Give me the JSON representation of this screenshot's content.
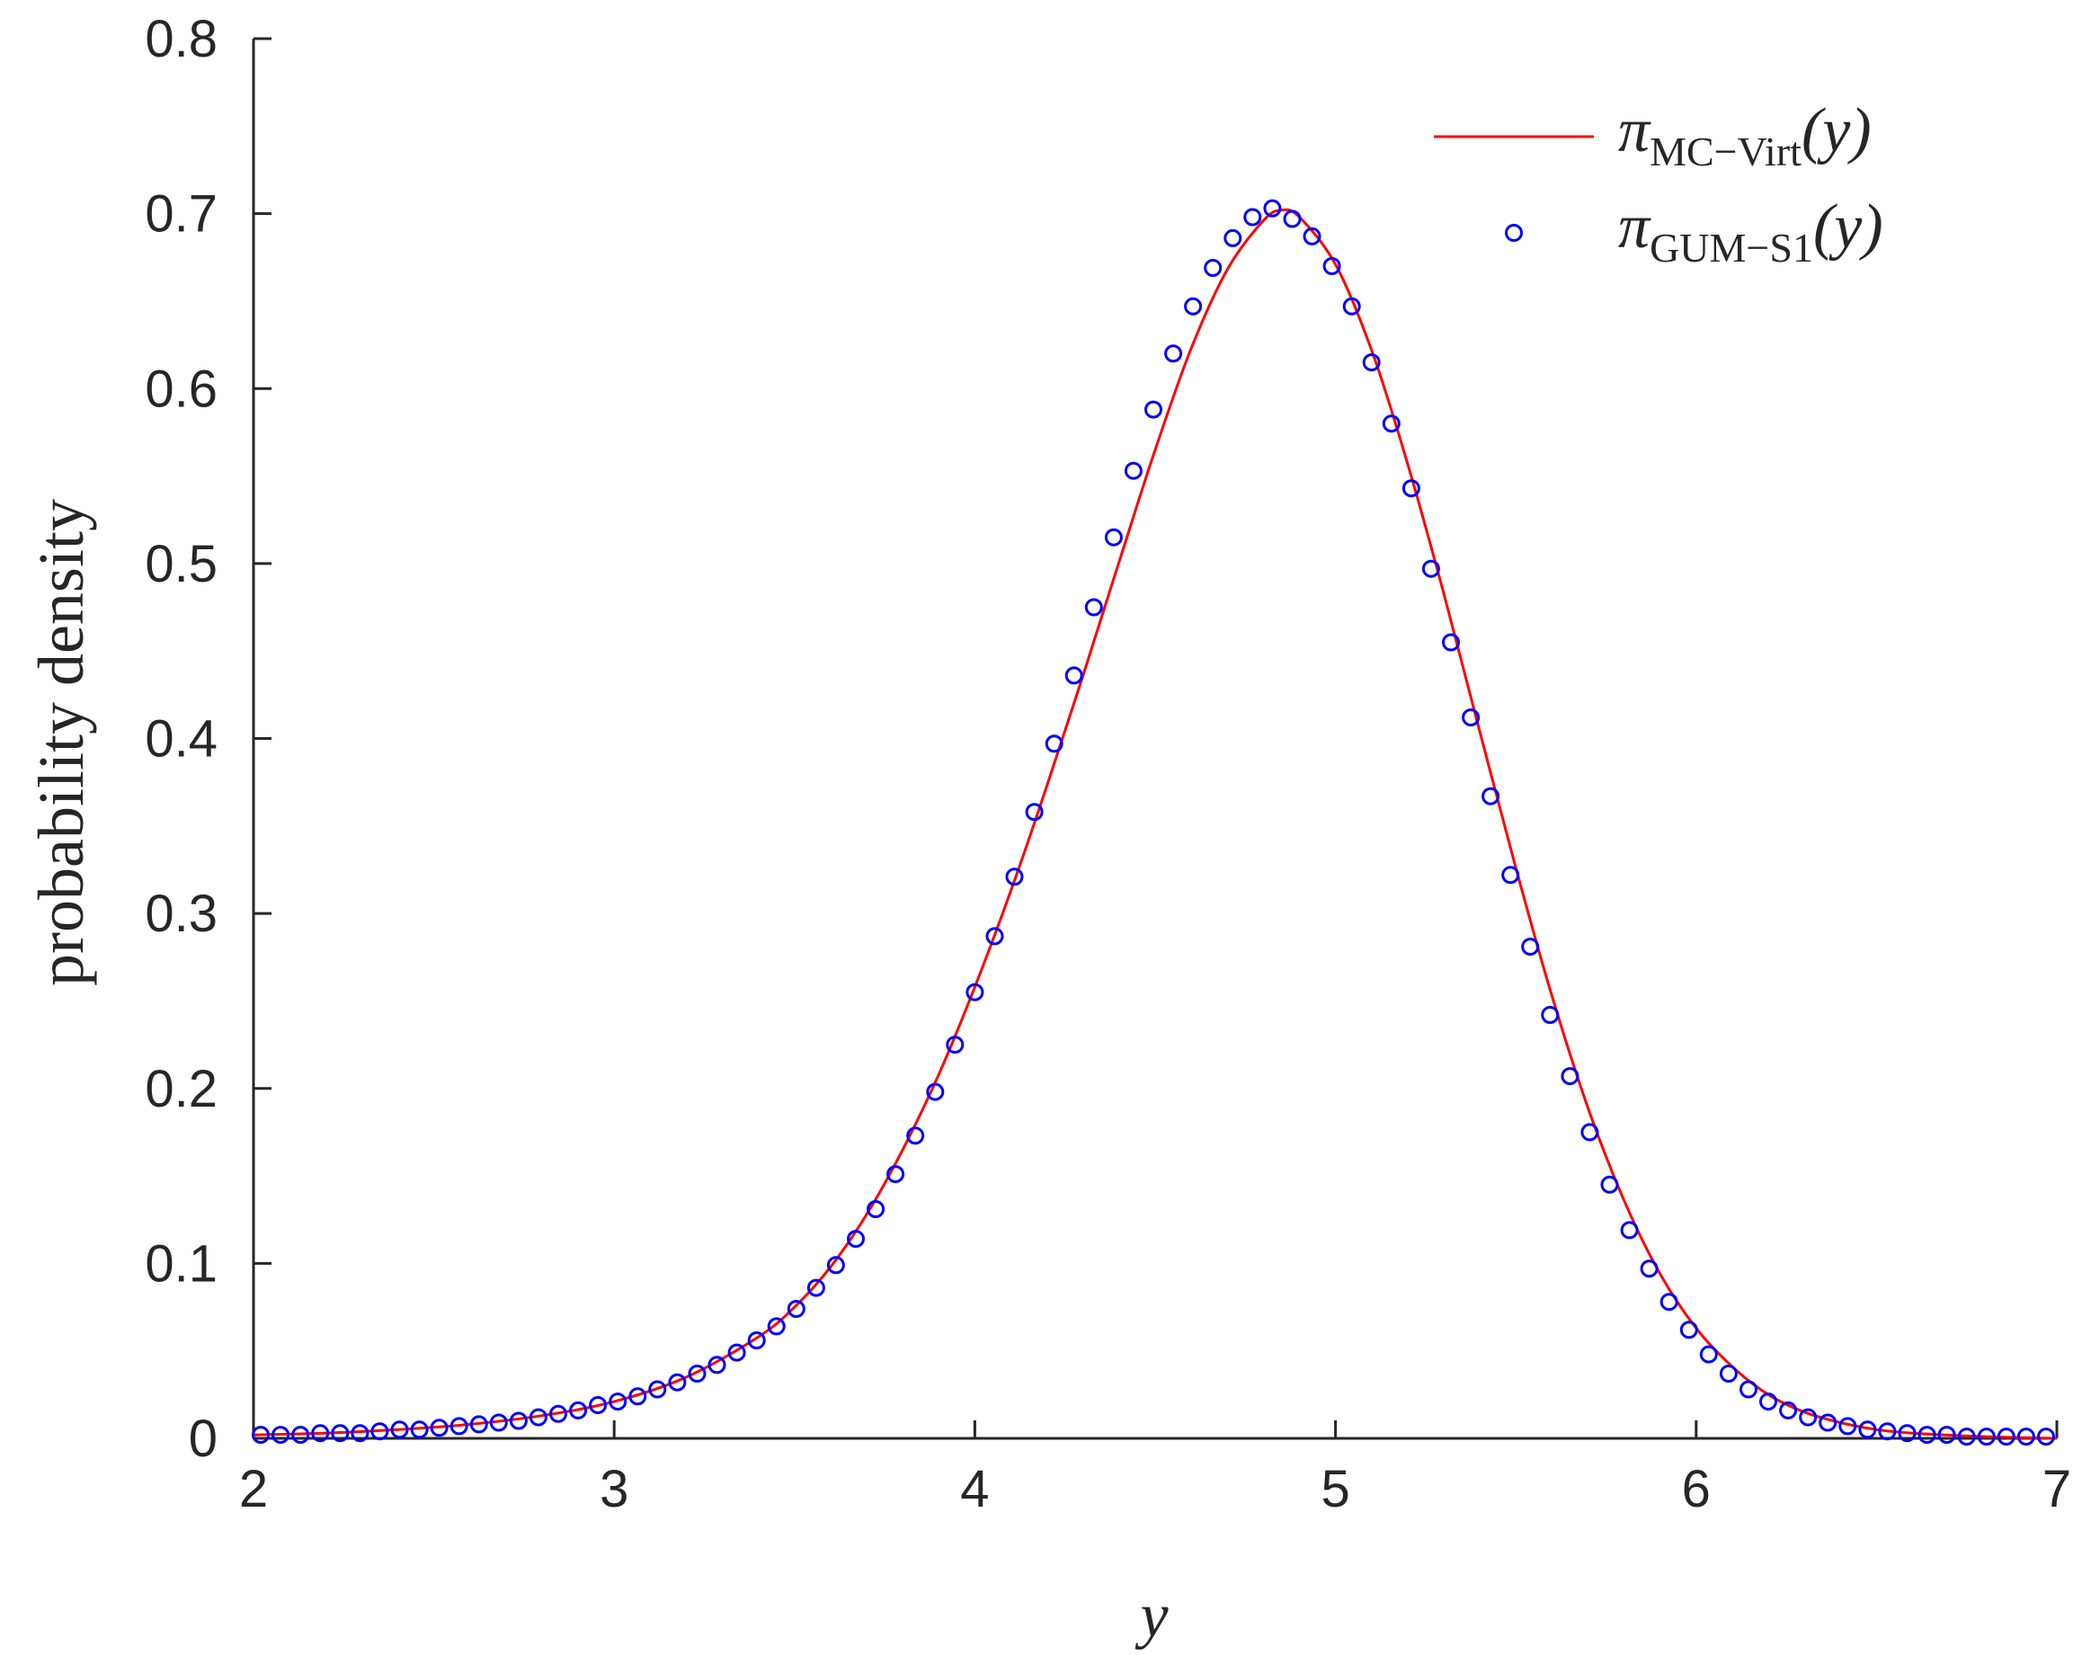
{
  "chart_data": {
    "type": "line",
    "xlabel": "y",
    "ylabel": "probability density",
    "xlim": [
      2,
      7
    ],
    "ylim": [
      0,
      0.8
    ],
    "x_ticks": [
      2,
      3,
      4,
      5,
      6,
      7
    ],
    "y_ticks": [
      0,
      0.1,
      0.2,
      0.3,
      0.4,
      0.5,
      0.6,
      0.7,
      0.8
    ],
    "x_tick_labels": [
      "2",
      "3",
      "4",
      "5",
      "6",
      "7"
    ],
    "y_tick_labels": [
      "0",
      "0.1",
      "0.2",
      "0.3",
      "0.4",
      "0.5",
      "0.6",
      "0.7",
      "0.8"
    ],
    "grid": false,
    "legend_position": "top-right",
    "series": [
      {
        "name": "π_MC−Virt(y)",
        "legend_symbol": "π",
        "legend_subscript": "MC−Virt",
        "legend_arg": "(y)",
        "style": "line",
        "color": "#ff0000",
        "x": [
          2.0,
          2.2,
          2.4,
          2.6,
          2.8,
          3.0,
          3.2,
          3.4,
          3.5,
          3.6,
          3.7,
          3.8,
          3.9,
          4.0,
          4.1,
          4.2,
          4.3,
          4.4,
          4.5,
          4.6,
          4.7,
          4.8,
          4.85,
          4.9,
          5.0,
          5.1,
          5.2,
          5.3,
          5.4,
          5.5,
          5.6,
          5.7,
          5.8,
          5.9,
          6.0,
          6.1,
          6.2,
          6.3,
          6.4,
          6.5,
          6.6,
          6.8,
          7.0
        ],
        "y": [
          0.002,
          0.003,
          0.005,
          0.008,
          0.013,
          0.021,
          0.035,
          0.058,
          0.075,
          0.098,
          0.128,
          0.165,
          0.208,
          0.258,
          0.313,
          0.373,
          0.436,
          0.501,
          0.565,
          0.623,
          0.668,
          0.696,
          0.702,
          0.698,
          0.671,
          0.622,
          0.557,
          0.483,
          0.404,
          0.326,
          0.253,
          0.189,
          0.136,
          0.094,
          0.063,
          0.041,
          0.025,
          0.015,
          0.009,
          0.005,
          0.003,
          0.001,
          0.0
        ]
      },
      {
        "name": "π_GUM−S1(y)",
        "legend_symbol": "π",
        "legend_subscript": "GUM−S1",
        "legend_arg": "(y)",
        "style": "markers",
        "marker": "circle",
        "color": "#0000ff",
        "x": [
          2.02,
          2.075,
          2.13,
          2.185,
          2.24,
          2.295,
          2.35,
          2.405,
          2.46,
          2.515,
          2.57,
          2.625,
          2.68,
          2.735,
          2.79,
          2.845,
          2.9,
          2.955,
          3.01,
          3.065,
          3.12,
          3.175,
          3.23,
          3.285,
          3.34,
          3.395,
          3.45,
          3.505,
          3.56,
          3.615,
          3.67,
          3.725,
          3.78,
          3.835,
          3.89,
          3.945,
          4.0,
          4.055,
          4.11,
          4.165,
          4.22,
          4.275,
          4.33,
          4.385,
          4.44,
          4.495,
          4.55,
          4.605,
          4.66,
          4.715,
          4.77,
          4.825,
          4.88,
          4.935,
          4.99,
          5.045,
          5.1,
          5.155,
          5.21,
          5.265,
          5.32,
          5.375,
          5.43,
          5.485,
          5.54,
          5.595,
          5.65,
          5.705,
          5.76,
          5.815,
          5.87,
          5.925,
          5.98,
          6.035,
          6.09,
          6.145,
          6.2,
          6.255,
          6.31,
          6.365,
          6.42,
          6.475,
          6.53,
          6.585,
          6.64,
          6.695,
          6.75,
          6.805,
          6.86,
          6.915,
          6.97
        ],
        "y": [
          0.002,
          0.002,
          0.002,
          0.003,
          0.003,
          0.003,
          0.004,
          0.005,
          0.005,
          0.006,
          0.007,
          0.008,
          0.009,
          0.01,
          0.012,
          0.014,
          0.016,
          0.019,
          0.021,
          0.024,
          0.028,
          0.032,
          0.037,
          0.042,
          0.049,
          0.056,
          0.064,
          0.074,
          0.086,
          0.099,
          0.114,
          0.131,
          0.151,
          0.173,
          0.198,
          0.225,
          0.255,
          0.287,
          0.321,
          0.358,
          0.397,
          0.436,
          0.475,
          0.515,
          0.553,
          0.588,
          0.62,
          0.647,
          0.669,
          0.686,
          0.698,
          0.703,
          0.697,
          0.687,
          0.67,
          0.647,
          0.615,
          0.58,
          0.543,
          0.497,
          0.455,
          0.412,
          0.367,
          0.322,
          0.281,
          0.242,
          0.207,
          0.175,
          0.145,
          0.119,
          0.097,
          0.078,
          0.062,
          0.048,
          0.037,
          0.028,
          0.021,
          0.016,
          0.012,
          0.009,
          0.007,
          0.005,
          0.004,
          0.003,
          0.002,
          0.002,
          0.001,
          0.001,
          0.001,
          0.001,
          0.001
        ]
      }
    ]
  }
}
